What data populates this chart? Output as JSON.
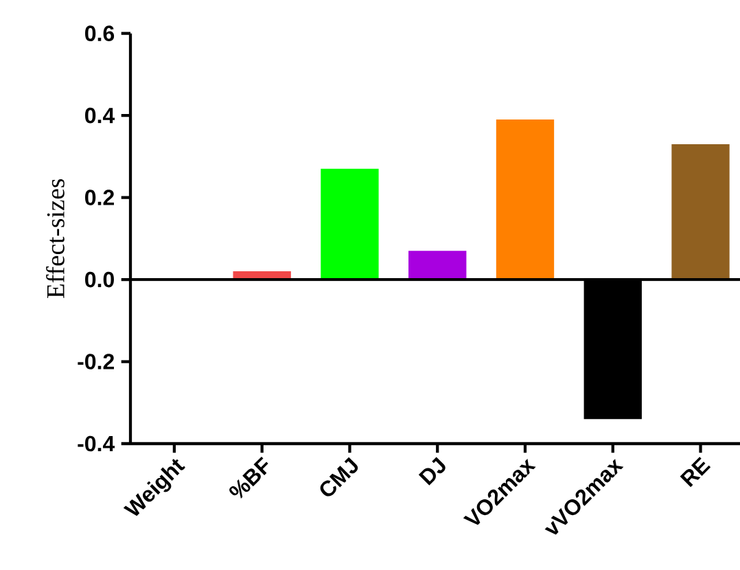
{
  "chart_data": {
    "type": "bar",
    "ylabel": "Effect-sizes",
    "categories": [
      "Weight",
      "%BF",
      "CMJ",
      "DJ",
      "VO2max",
      "vVO2max",
      "RE"
    ],
    "values": [
      0,
      0.02,
      0.27,
      0.07,
      0.39,
      -0.34,
      0.33
    ],
    "colors": [
      "#000000",
      "#f04848",
      "#00ff00",
      "#a800e0",
      "#ff8000",
      "#000000",
      "#906020"
    ],
    "ylim": [
      -0.4,
      0.6
    ],
    "yticks": [
      {
        "value": -0.4,
        "label": "-0.4"
      },
      {
        "value": -0.2,
        "label": "-0.2"
      },
      {
        "value": 0,
        "label": "0.0"
      },
      {
        "value": 0.2,
        "label": "0.2"
      },
      {
        "value": 0.4,
        "label": "0.4"
      },
      {
        "value": 0.6,
        "label": "0.6"
      }
    ],
    "ref_lines": [
      {
        "axis": "y",
        "value": 0,
        "label": null
      }
    ]
  }
}
